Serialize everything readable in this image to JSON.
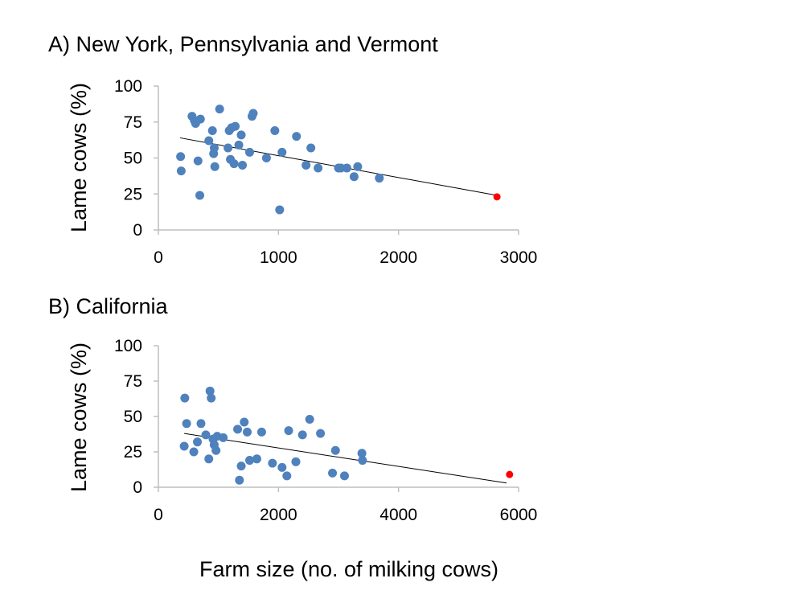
{
  "colors": {
    "point": "#4F81BD",
    "highlight": "#FF0000",
    "axis": "#BFBFBF",
    "trend": "#000000"
  },
  "figure": {
    "xlabel": "Farm size (no. of milking cows)"
  },
  "chart_data": [
    {
      "type": "scatter",
      "title": "A) New York, Pennsylvania and Vermont",
      "xlabel": "",
      "ylabel": "Lame cows (%)",
      "xlim": [
        0,
        3000
      ],
      "ylim": [
        0,
        100
      ],
      "xticks": [
        0,
        1000,
        2000,
        3000
      ],
      "yticks": [
        0,
        25,
        50,
        75,
        100
      ],
      "xtick_labels": [
        "0",
        "1000",
        "2000",
        "3000"
      ],
      "ytick_labels": [
        "0",
        "25",
        "50",
        "75",
        "100"
      ],
      "grid": false,
      "points": [
        {
          "x": 185,
          "y": 51
        },
        {
          "x": 190,
          "y": 41
        },
        {
          "x": 280,
          "y": 79
        },
        {
          "x": 300,
          "y": 76
        },
        {
          "x": 310,
          "y": 74
        },
        {
          "x": 330,
          "y": 48
        },
        {
          "x": 345,
          "y": 24
        },
        {
          "x": 350,
          "y": 77
        },
        {
          "x": 420,
          "y": 62
        },
        {
          "x": 450,
          "y": 69
        },
        {
          "x": 460,
          "y": 53
        },
        {
          "x": 465,
          "y": 57
        },
        {
          "x": 470,
          "y": 44
        },
        {
          "x": 510,
          "y": 84
        },
        {
          "x": 580,
          "y": 57
        },
        {
          "x": 590,
          "y": 69
        },
        {
          "x": 600,
          "y": 49
        },
        {
          "x": 610,
          "y": 71
        },
        {
          "x": 630,
          "y": 46
        },
        {
          "x": 640,
          "y": 72
        },
        {
          "x": 670,
          "y": 59
        },
        {
          "x": 690,
          "y": 66
        },
        {
          "x": 700,
          "y": 45
        },
        {
          "x": 760,
          "y": 54
        },
        {
          "x": 780,
          "y": 79
        },
        {
          "x": 790,
          "y": 81
        },
        {
          "x": 900,
          "y": 50
        },
        {
          "x": 970,
          "y": 69
        },
        {
          "x": 1010,
          "y": 14
        },
        {
          "x": 1030,
          "y": 54
        },
        {
          "x": 1150,
          "y": 65
        },
        {
          "x": 1230,
          "y": 45
        },
        {
          "x": 1270,
          "y": 57
        },
        {
          "x": 1330,
          "y": 43
        },
        {
          "x": 1500,
          "y": 43
        },
        {
          "x": 1520,
          "y": 43
        },
        {
          "x": 1570,
          "y": 43
        },
        {
          "x": 1630,
          "y": 37
        },
        {
          "x": 1660,
          "y": 44
        },
        {
          "x": 1840,
          "y": 36
        }
      ],
      "highlight_points": [
        {
          "x": 2820,
          "y": 23
        }
      ],
      "trendline": [
        {
          "x": 180,
          "y": 64
        },
        {
          "x": 2820,
          "y": 24
        }
      ]
    },
    {
      "type": "scatter",
      "title": "B) California",
      "xlabel": "",
      "ylabel": "Lame cows (%)",
      "xlim": [
        0,
        6000
      ],
      "ylim": [
        0,
        100
      ],
      "xticks": [
        0,
        2000,
        4000,
        6000
      ],
      "yticks": [
        0,
        25,
        50,
        75,
        100
      ],
      "xtick_labels": [
        "0",
        "2000",
        "4000",
        "6000"
      ],
      "ytick_labels": [
        "0",
        "25",
        "50",
        "75",
        "100"
      ],
      "grid": false,
      "points": [
        {
          "x": 430,
          "y": 29
        },
        {
          "x": 440,
          "y": 63
        },
        {
          "x": 470,
          "y": 45
        },
        {
          "x": 590,
          "y": 25
        },
        {
          "x": 650,
          "y": 32
        },
        {
          "x": 710,
          "y": 45
        },
        {
          "x": 790,
          "y": 37
        },
        {
          "x": 840,
          "y": 20
        },
        {
          "x": 860,
          "y": 68
        },
        {
          "x": 880,
          "y": 63
        },
        {
          "x": 910,
          "y": 34
        },
        {
          "x": 930,
          "y": 30
        },
        {
          "x": 960,
          "y": 26
        },
        {
          "x": 980,
          "y": 36
        },
        {
          "x": 1080,
          "y": 35
        },
        {
          "x": 1320,
          "y": 41
        },
        {
          "x": 1350,
          "y": 5
        },
        {
          "x": 1380,
          "y": 15
        },
        {
          "x": 1430,
          "y": 46
        },
        {
          "x": 1480,
          "y": 39
        },
        {
          "x": 1520,
          "y": 19
        },
        {
          "x": 1640,
          "y": 20
        },
        {
          "x": 1720,
          "y": 39
        },
        {
          "x": 1900,
          "y": 17
        },
        {
          "x": 2060,
          "y": 14
        },
        {
          "x": 2140,
          "y": 8
        },
        {
          "x": 2170,
          "y": 40
        },
        {
          "x": 2290,
          "y": 18
        },
        {
          "x": 2400,
          "y": 37
        },
        {
          "x": 2520,
          "y": 48
        },
        {
          "x": 2700,
          "y": 38
        },
        {
          "x": 2900,
          "y": 10
        },
        {
          "x": 2950,
          "y": 26
        },
        {
          "x": 3100,
          "y": 8
        },
        {
          "x": 3390,
          "y": 24
        },
        {
          "x": 3400,
          "y": 19
        }
      ],
      "highlight_points": [
        {
          "x": 5850,
          "y": 9
        }
      ],
      "trendline": [
        {
          "x": 430,
          "y": 38
        },
        {
          "x": 5800,
          "y": 3
        }
      ]
    }
  ]
}
